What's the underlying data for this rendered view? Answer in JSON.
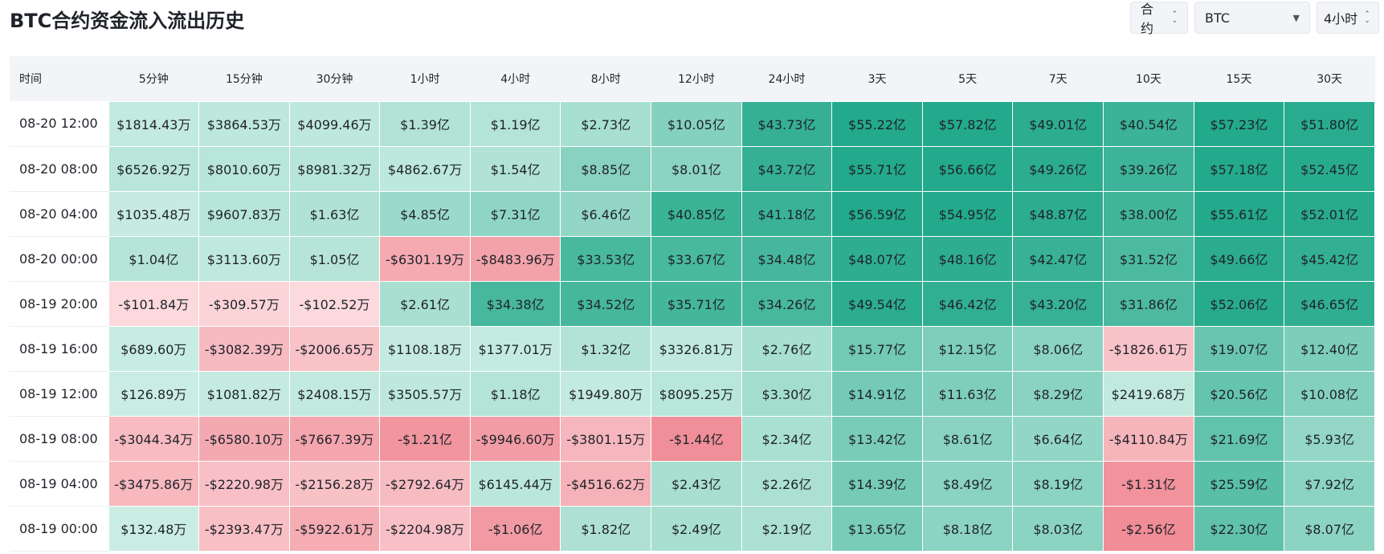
{
  "title": "BTC合约资金流入流出历史",
  "controls": {
    "type": "合约",
    "coin": "BTC",
    "interval": "4小时"
  },
  "table": {
    "time_header": "时间",
    "columns": [
      "5分钟",
      "15分钟",
      "30分钟",
      "1小时",
      "4小时",
      "8小时",
      "12小时",
      "24小时",
      "3天",
      "5天",
      "7天",
      "10天",
      "15天",
      "30天"
    ],
    "rows": [
      {
        "time": "08-20 12:00",
        "cells": [
          "$1814.43万",
          "$3864.53万",
          "$4099.46万",
          "$1.39亿",
          "$1.19亿",
          "$2.73亿",
          "$10.05亿",
          "$43.73亿",
          "$55.22亿",
          "$57.82亿",
          "$49.01亿",
          "$40.54亿",
          "$57.23亿",
          "$51.80亿"
        ]
      },
      {
        "time": "08-20 08:00",
        "cells": [
          "$6526.92万",
          "$8010.60万",
          "$8981.32万",
          "$4862.67万",
          "$1.54亿",
          "$8.85亿",
          "$8.01亿",
          "$43.72亿",
          "$55.71亿",
          "$56.66亿",
          "$49.26亿",
          "$39.26亿",
          "$57.18亿",
          "$52.45亿"
        ]
      },
      {
        "time": "08-20 04:00",
        "cells": [
          "$1035.48万",
          "$9607.83万",
          "$1.63亿",
          "$4.85亿",
          "$7.31亿",
          "$6.46亿",
          "$40.85亿",
          "$41.18亿",
          "$56.59亿",
          "$54.95亿",
          "$48.87亿",
          "$38.00亿",
          "$55.61亿",
          "$52.01亿"
        ]
      },
      {
        "time": "08-20 00:00",
        "cells": [
          "$1.04亿",
          "$3113.60万",
          "$1.05亿",
          "-$6301.19万",
          "-$8483.96万",
          "$33.53亿",
          "$33.67亿",
          "$34.48亿",
          "$48.07亿",
          "$48.16亿",
          "$42.47亿",
          "$31.52亿",
          "$49.66亿",
          "$45.42亿"
        ]
      },
      {
        "time": "08-19 20:00",
        "cells": [
          "-$101.84万",
          "-$309.57万",
          "-$102.52万",
          "$2.61亿",
          "$34.38亿",
          "$34.52亿",
          "$35.71亿",
          "$34.26亿",
          "$49.54亿",
          "$46.42亿",
          "$43.20亿",
          "$31.86亿",
          "$52.06亿",
          "$46.65亿"
        ]
      },
      {
        "time": "08-19 16:00",
        "cells": [
          "$689.60万",
          "-$3082.39万",
          "-$2006.65万",
          "$1108.18万",
          "$1377.01万",
          "$1.32亿",
          "$3326.81万",
          "$2.76亿",
          "$15.77亿",
          "$12.15亿",
          "$8.06亿",
          "-$1826.61万",
          "$19.07亿",
          "$12.40亿"
        ]
      },
      {
        "time": "08-19 12:00",
        "cells": [
          "$126.89万",
          "$1081.82万",
          "$2408.15万",
          "$3505.57万",
          "$1.18亿",
          "$1949.80万",
          "$8095.25万",
          "$3.30亿",
          "$14.91亿",
          "$11.63亿",
          "$8.29亿",
          "$2419.68万",
          "$20.56亿",
          "$10.08亿"
        ]
      },
      {
        "time": "08-19 08:00",
        "cells": [
          "-$3044.34万",
          "-$6580.10万",
          "-$7667.39万",
          "-$1.21亿",
          "-$9946.60万",
          "-$3801.15万",
          "-$1.44亿",
          "$2.34亿",
          "$13.42亿",
          "$8.61亿",
          "$6.64亿",
          "-$4110.84万",
          "$21.69亿",
          "$5.93亿"
        ]
      },
      {
        "time": "08-19 04:00",
        "cells": [
          "-$3475.86万",
          "-$2220.98万",
          "-$2156.28万",
          "-$2792.64万",
          "$6145.44万",
          "-$4516.62万",
          "$2.43亿",
          "$2.26亿",
          "$14.39亿",
          "$8.49亿",
          "$8.19亿",
          "-$1.31亿",
          "$25.59亿",
          "$7.92亿"
        ]
      },
      {
        "time": "08-19 00:00",
        "cells": [
          "$132.48万",
          "-$2393.47万",
          "-$5922.61万",
          "-$2204.98万",
          "-$1.06亿",
          "$1.82亿",
          "$2.49亿",
          "$2.19亿",
          "$13.65亿",
          "$8.18亿",
          "$8.03亿",
          "-$2.56亿",
          "$22.30亿",
          "$8.07亿"
        ]
      }
    ]
  },
  "colors": {
    "positive_strong": "#23a98b",
    "positive_light": "#cdeee4",
    "negative_strong": "#f08d97",
    "negative_light": "#fde0e3"
  }
}
